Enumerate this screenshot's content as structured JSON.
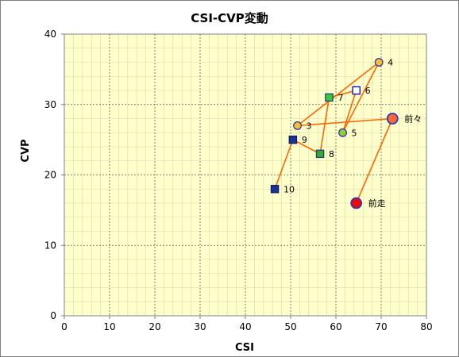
{
  "chart_data": {
    "type": "scatter",
    "title": "CSI-CVP変動",
    "xlabel": "CSI",
    "ylabel": "CVP",
    "xlim": [
      0,
      80
    ],
    "ylim": [
      0,
      40
    ],
    "xticks": [
      "0",
      "10",
      "20",
      "30",
      "40",
      "50",
      "60",
      "70",
      "80"
    ],
    "yticks": [
      "0",
      "10",
      "20",
      "30",
      "40"
    ],
    "grid": true,
    "plot_background": "#ffffcc",
    "line_color": "#ff6600",
    "points": [
      {
        "label": "前走",
        "x": 64.5,
        "y": 16,
        "marker": "circle-large",
        "fill": "#ff0000",
        "stroke": "#1f3fbf"
      },
      {
        "label": "前々",
        "x": 72.5,
        "y": 28,
        "marker": "circle-large",
        "fill": "#ff6633",
        "stroke": "#1f3fbf"
      },
      {
        "label": "3",
        "x": 51.5,
        "y": 27,
        "marker": "circle",
        "fill": "#ffbb33",
        "stroke": "#2f3f9f"
      },
      {
        "label": "4",
        "x": 69.5,
        "y": 36,
        "marker": "circle",
        "fill": "#ffbb33",
        "stroke": "#2f3f9f"
      },
      {
        "label": "5",
        "x": 61.5,
        "y": 26,
        "marker": "circle",
        "fill": "#99cc33",
        "stroke": "#2f3f9f"
      },
      {
        "label": "6",
        "x": 64.5,
        "y": 32,
        "marker": "square-open",
        "fill": "#ffffff",
        "stroke": "#0000cc"
      },
      {
        "label": "7",
        "x": 58.5,
        "y": 31,
        "marker": "square",
        "fill": "#33cc33",
        "stroke": "#1f3f7f"
      },
      {
        "label": "8",
        "x": 56.5,
        "y": 23,
        "marker": "square",
        "fill": "#33aa33",
        "stroke": "#1f3f7f"
      },
      {
        "label": "9",
        "x": 50.5,
        "y": 25,
        "marker": "square",
        "fill": "#1a3399",
        "stroke": "#0f1f66"
      },
      {
        "label": "10",
        "x": 46.5,
        "y": 18,
        "marker": "square",
        "fill": "#1a3399",
        "stroke": "#0f1f66"
      }
    ]
  }
}
